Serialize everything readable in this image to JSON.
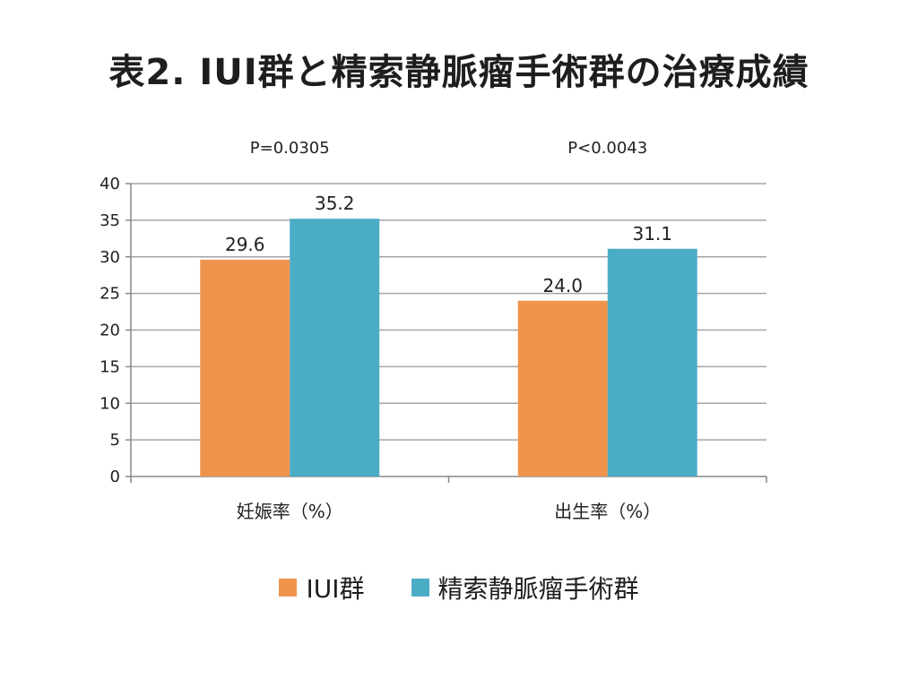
{
  "chart_data": {
    "type": "bar",
    "title": "表2. IUI群と精索静脈瘤手術群の治療成績",
    "categories": [
      "妊娠率（%）",
      "出生率（%）"
    ],
    "series": [
      {
        "name": "IUI群",
        "color": "#F0944D",
        "values": [
          29.6,
          24.0
        ],
        "labels": [
          "29.6",
          "24.0"
        ]
      },
      {
        "name": "精索静脈瘤手術群",
        "color": "#4BACC6",
        "values": [
          35.2,
          31.1
        ],
        "labels": [
          "35.2",
          "31.1"
        ]
      }
    ],
    "annotations": [
      "P=0.0305",
      "P<0.0043"
    ],
    "ylim": [
      0,
      40
    ],
    "yticks": [
      0,
      5,
      10,
      15,
      20,
      25,
      30,
      35,
      40
    ],
    "grid": true,
    "legend_position": "bottom"
  }
}
